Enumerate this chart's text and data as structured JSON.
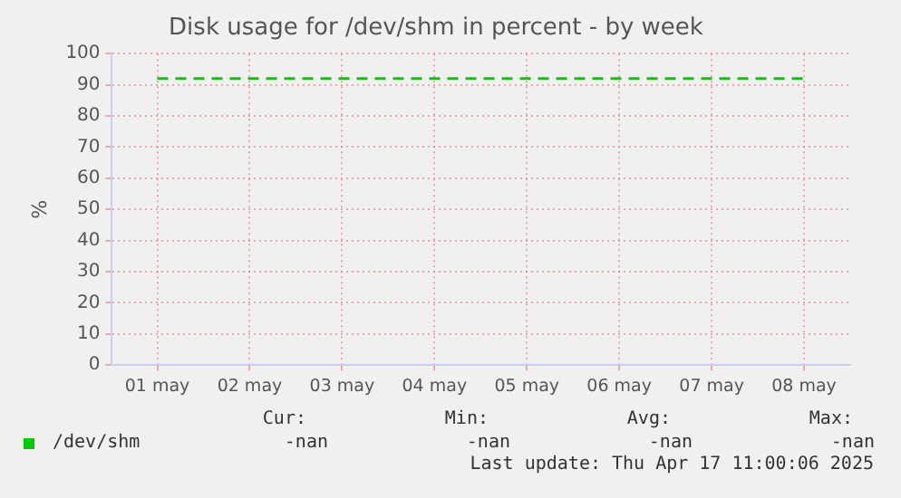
{
  "chart_data": {
    "type": "line",
    "title": "Disk usage for /dev/shm in percent - by week",
    "ylabel": "%",
    "categories": [
      "01 may",
      "02 may",
      "03 may",
      "04 may",
      "05 may",
      "06 may",
      "07 may",
      "08 may"
    ],
    "series": [
      {
        "name": "/dev/shm",
        "color": "#00cc00",
        "values": [
          92,
          92,
          92,
          92,
          92,
          92,
          92,
          92
        ]
      }
    ],
    "ylim": [
      0,
      100
    ],
    "yticks": [
      0,
      10,
      20,
      30,
      40,
      50,
      60,
      70,
      80,
      90,
      100
    ],
    "grid": true,
    "legend": "bottom",
    "marker": "none",
    "line_style": "dashed",
    "annotations": [
      "Cur:",
      "-nan",
      "Min:",
      "-nan",
      "Avg:",
      "-nan",
      "Max:",
      "-nan",
      "Last update: Thu Apr 17 11:00:06 2025"
    ]
  }
}
